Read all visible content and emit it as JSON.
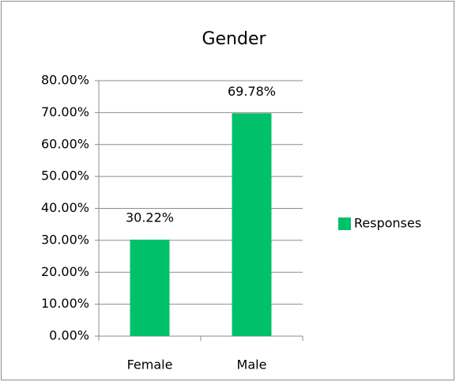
{
  "chart_data": {
    "type": "bar",
    "title": "Gender",
    "categories": [
      "Female",
      "Male"
    ],
    "series": [
      {
        "name": "Responses",
        "color": "#00c06a",
        "values": [
          30.22,
          69.78
        ],
        "value_labels": [
          "30.22%",
          "69.78%"
        ]
      }
    ],
    "ylim": [
      0,
      80
    ],
    "yticks": [
      {
        "value": 0,
        "label": "0.00%"
      },
      {
        "value": 10,
        "label": "10.00%"
      },
      {
        "value": 20,
        "label": "20.00%"
      },
      {
        "value": 30,
        "label": "30.00%"
      },
      {
        "value": 40,
        "label": "40.00%"
      },
      {
        "value": 50,
        "label": "50.00%"
      },
      {
        "value": 60,
        "label": "60.00%"
      },
      {
        "value": 70,
        "label": "70.00%"
      },
      {
        "value": 80,
        "label": "80.00%"
      }
    ],
    "grid": true,
    "legend": "right"
  }
}
